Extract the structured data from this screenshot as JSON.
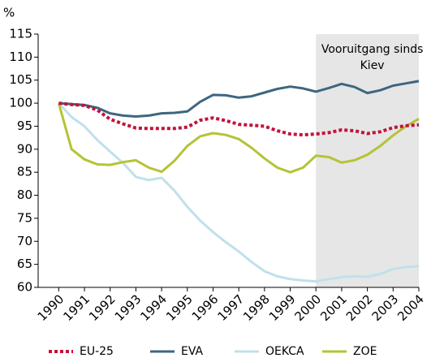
{
  "chart_data": {
    "type": "line",
    "ylabel": "%",
    "x": [
      1990,
      1990.5,
      1991,
      1991.5,
      1992,
      1992.5,
      1993,
      1993.5,
      1994,
      1994.5,
      1995,
      1995.5,
      1996,
      1996.5,
      1997,
      1997.5,
      1998,
      1998.5,
      1999,
      1999.5,
      2000,
      2000.5,
      2001,
      2001.5,
      2002,
      2002.5,
      2003,
      2003.5,
      2004
    ],
    "xlim": [
      1989.2,
      2004
    ],
    "xticks": [
      1990,
      1991,
      1992,
      1993,
      1994,
      1995,
      1996,
      1997,
      1998,
      1999,
      2000,
      2001,
      2002,
      2003,
      2004
    ],
    "ylim": [
      60,
      115
    ],
    "yticks": [
      60,
      65,
      70,
      75,
      80,
      85,
      90,
      95,
      100,
      105,
      110,
      115
    ],
    "shade": [
      2000,
      2004
    ],
    "shade_color": "#e6e6e6",
    "annotation": [
      "Vooruitgang sinds",
      "Kiev"
    ],
    "series": [
      {
        "name": "EU-25",
        "color": "#c0143c",
        "dashed": true,
        "values": [
          100,
          99.7,
          99.5,
          98.5,
          96.5,
          95.5,
          94.6,
          94.5,
          94.5,
          94.5,
          94.8,
          96.3,
          96.8,
          96.2,
          95.4,
          95.2,
          95,
          94,
          93.3,
          93.1,
          93.3,
          93.6,
          94.2,
          94,
          93.4,
          93.8,
          94.7,
          95.1,
          95.3
        ]
      },
      {
        "name": "EVA",
        "color": "#3e6680",
        "dashed": false,
        "values": [
          100,
          99.8,
          99.6,
          99,
          97.8,
          97.3,
          97.1,
          97.3,
          97.8,
          97.9,
          98.2,
          100.3,
          101.8,
          101.7,
          101.2,
          101.5,
          102.3,
          103.1,
          103.6,
          103.2,
          102.5,
          103.3,
          104.2,
          103.5,
          102.2,
          102.8,
          103.8,
          104.3,
          104.8
        ]
      },
      {
        "name": "OEKCA",
        "color": "#bfe1ea",
        "dashed": false,
        "values": [
          100,
          97,
          95,
          92,
          89.5,
          87,
          84,
          83.3,
          83.8,
          81,
          77.5,
          74.5,
          72,
          69.8,
          67.8,
          65.5,
          63.5,
          62.4,
          61.8,
          61.5,
          61.3,
          61.8,
          62.2,
          62.4,
          62.3,
          62.9,
          64,
          64.4,
          64.6
        ]
      },
      {
        "name": "ZOE",
        "color": "#b5c334",
        "dashed": false,
        "values": [
          100,
          90,
          87.8,
          86.7,
          86.6,
          87.2,
          87.6,
          86,
          85.1,
          87.5,
          90.7,
          92.8,
          93.5,
          93.1,
          92.2,
          90.3,
          88,
          86,
          85,
          86,
          88.6,
          88.3,
          87.1,
          87.6,
          88.8,
          90.7,
          93,
          95,
          96.6
        ]
      }
    ]
  }
}
